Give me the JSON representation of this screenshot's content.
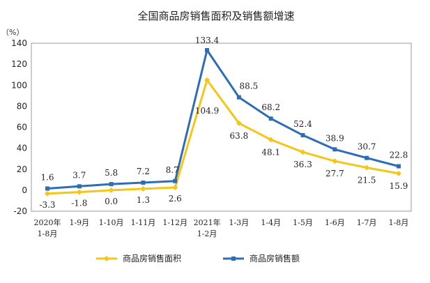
{
  "chart_data": {
    "type": "line",
    "title": "全国商品房销售面积及销售额增速",
    "unit_label": "（%）",
    "xlabel": "",
    "ylabel": "",
    "ylim": [
      -20,
      140
    ],
    "yticks": [
      -20,
      0,
      20,
      40,
      60,
      80,
      100,
      120,
      140
    ],
    "grid": false,
    "legend_position": "bottom",
    "categories": [
      [
        "2020年",
        "1-8月"
      ],
      [
        "1-9月"
      ],
      [
        "1-10月"
      ],
      [
        "1-11月"
      ],
      [
        "1-12月"
      ],
      [
        "2021年",
        "1-2月"
      ],
      [
        "1-3月"
      ],
      [
        "1-4月"
      ],
      [
        "1-5月"
      ],
      [
        "1-6月"
      ],
      [
        "1-7月"
      ],
      [
        "1-8月"
      ]
    ],
    "series": [
      {
        "name": "商品房销售面积",
        "color": "#F5C518",
        "values": [
          -3.3,
          -1.8,
          0.0,
          1.3,
          2.6,
          104.9,
          63.8,
          48.1,
          36.3,
          27.7,
          21.5,
          15.9
        ],
        "labels": [
          "-3.3",
          "-1.8",
          "0.0",
          "1.3",
          "2.6",
          "104.9",
          "63.8",
          "48.1",
          "36.3",
          "27.7",
          "21.5",
          "15.9"
        ]
      },
      {
        "name": "商品房销售额",
        "color": "#2E6DB4",
        "values": [
          1.6,
          3.7,
          5.8,
          7.2,
          8.7,
          133.4,
          88.5,
          68.2,
          52.4,
          38.9,
          30.7,
          22.8
        ],
        "labels": [
          "1.6",
          "3.7",
          "5.8",
          "7.2",
          "8.7",
          "133.4",
          "88.5",
          "68.2",
          "52.4",
          "38.9",
          "30.7",
          "22.8"
        ]
      }
    ]
  }
}
